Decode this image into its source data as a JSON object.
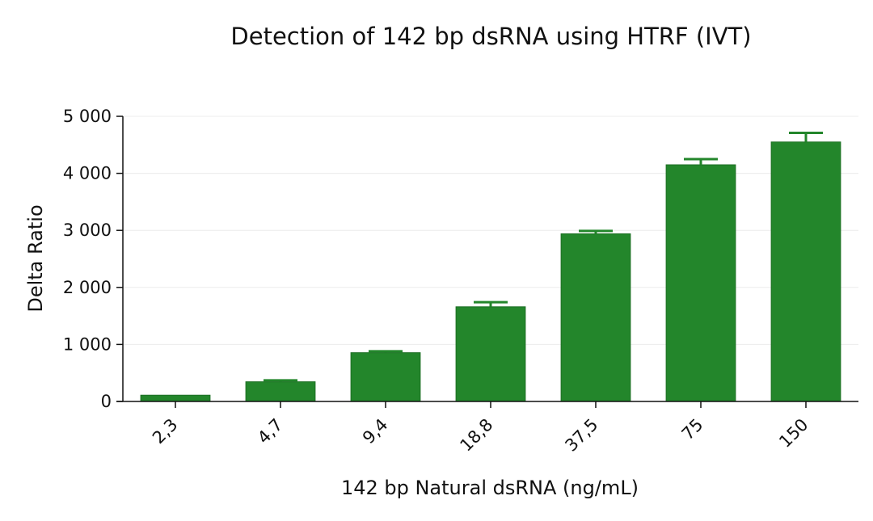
{
  "chart_data": {
    "type": "bar",
    "title": "Detection of 142 bp dsRNA using HTRF (IVT)",
    "xlabel": "142 bp Natural dsRNA (ng/mL)",
    "ylabel": "Delta Ratio",
    "categories": [
      "2,3",
      "4,7",
      "9,4",
      "18,8",
      "37,5",
      "75",
      "150"
    ],
    "values": [
      110,
      345,
      855,
      1660,
      2940,
      4150,
      4550
    ],
    "error_upper": [
      0,
      370,
      880,
      1740,
      2990,
      4250,
      4710
    ],
    "ylim": [
      0,
      5000
    ],
    "yticks": [
      0,
      1000,
      2000,
      3000,
      4000,
      5000
    ],
    "ytick_labels": [
      "0",
      "1 000",
      "2 000",
      "3 000",
      "4 000",
      "5 000"
    ],
    "grid": true,
    "colors": {
      "bar": "#23862b",
      "bar_edge": "#1d6f24",
      "axis": "#111111",
      "grid": "#ececec"
    }
  }
}
